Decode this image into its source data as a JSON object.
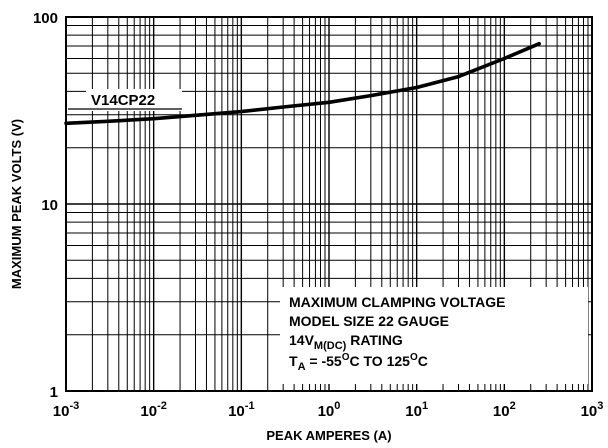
{
  "chart_data": {
    "type": "line",
    "title": "",
    "xlabel": "PEAK AMPERES (A)",
    "ylabel": "MAXIMUM PEAK VOLTS (V)",
    "x_scale": "log",
    "y_scale": "log",
    "xlim": [
      0.001,
      1000
    ],
    "ylim": [
      1,
      100
    ],
    "grid": true,
    "x_ticks": [
      {
        "base": "10",
        "exp": "-3"
      },
      {
        "base": "10",
        "exp": "-2"
      },
      {
        "base": "10",
        "exp": "-1"
      },
      {
        "base": "10",
        "exp": "0"
      },
      {
        "base": "10",
        "exp": "1"
      },
      {
        "base": "10",
        "exp": "2"
      },
      {
        "base": "10",
        "exp": "3"
      }
    ],
    "y_ticks": [
      "1",
      "10",
      "100"
    ],
    "series": [
      {
        "name": "V14CP22",
        "x": [
          0.001,
          0.003,
          0.01,
          0.03,
          0.1,
          0.3,
          1,
          3,
          10,
          30,
          100,
          250
        ],
        "y": [
          27,
          27.7,
          28.6,
          29.8,
          31.2,
          33,
          35,
          38,
          42,
          48,
          60,
          72
        ]
      }
    ],
    "annotation": {
      "line1": "MAXIMUM CLAMPING VOLTAGE",
      "line2": "MODEL SIZE 22 GAUGE",
      "line3_main": "14V",
      "line3_sub": "M(DC)",
      "line3_end": " RATING",
      "line4_a": "T",
      "line4_sub": "A",
      "line4_b": " = -55",
      "line4_sup1": "O",
      "line4_c": "C TO 125",
      "line4_sup2": "O",
      "line4_d": "C"
    }
  }
}
